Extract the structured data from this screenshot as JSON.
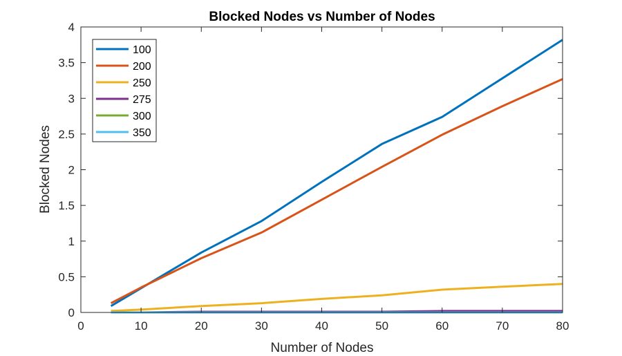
{
  "chart_data": {
    "type": "line",
    "title": "Blocked Nodes vs Number of Nodes",
    "xlabel": "Number of Nodes",
    "ylabel": "Blocked Nodes",
    "xlim": [
      0,
      80
    ],
    "ylim": [
      0,
      4
    ],
    "xticks": [
      0,
      10,
      20,
      30,
      40,
      50,
      60,
      70,
      80
    ],
    "yticks": [
      0,
      0.5,
      1,
      1.5,
      2,
      2.5,
      3,
      3.5,
      4
    ],
    "xtick_labels": [
      "0",
      "10",
      "20",
      "30",
      "40",
      "50",
      "60",
      "70",
      "80"
    ],
    "ytick_labels": [
      "0",
      "0.5",
      "1",
      "1.5",
      "2",
      "2.5",
      "3",
      "3.5",
      "4"
    ],
    "grid": false,
    "legend_position": "top-left",
    "x": [
      5,
      10,
      20,
      30,
      40,
      50,
      60,
      70,
      80
    ],
    "series": [
      {
        "name": "100",
        "color": "#0072BD",
        "values": [
          0.09,
          0.34,
          0.84,
          1.28,
          1.83,
          2.36,
          2.74,
          3.28,
          3.82
        ]
      },
      {
        "name": "200",
        "color": "#D95319",
        "values": [
          0.13,
          0.35,
          0.76,
          1.12,
          1.58,
          2.04,
          2.49,
          2.89,
          3.27
        ]
      },
      {
        "name": "250",
        "color": "#EDB120",
        "values": [
          0.02,
          0.04,
          0.09,
          0.13,
          0.19,
          0.24,
          0.32,
          0.36,
          0.4
        ]
      },
      {
        "name": "275",
        "color": "#7E2F8E",
        "values": [
          0.0,
          0.0,
          0.01,
          0.01,
          0.01,
          0.01,
          0.02,
          0.02,
          0.02
        ]
      },
      {
        "name": "300",
        "color": "#77AC30",
        "values": [
          0.0,
          0.0,
          0.0,
          0.0,
          0.0,
          0.0,
          0.0,
          0.0,
          0.0
        ]
      },
      {
        "name": "350",
        "color": "#4DBEEE",
        "values": [
          0.0,
          0.0,
          0.0,
          0.0,
          0.0,
          0.0,
          0.0,
          0.0,
          0.0
        ]
      }
    ]
  }
}
